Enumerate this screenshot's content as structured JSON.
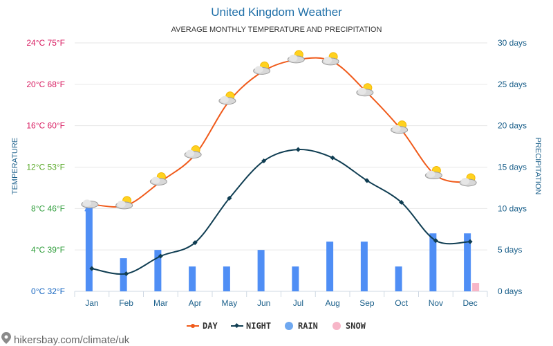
{
  "chart_data": {
    "type": "line",
    "title": "United Kingdom Weather",
    "subtitle": "AVERAGE MONTHLY TEMPERATURE AND PRECIPITATION",
    "categories": [
      "Jan",
      "Feb",
      "Mar",
      "Apr",
      "May",
      "Jun",
      "Jul",
      "Aug",
      "Sep",
      "Oct",
      "Nov",
      "Dec"
    ],
    "series": [
      {
        "name": "DAY",
        "type": "line",
        "axis": "temperature",
        "color": "#f05a1a",
        "values": [
          8.4,
          8.3,
          10.6,
          13.2,
          18.4,
          21.3,
          22.4,
          22.2,
          19.2,
          15.6,
          11.2,
          10.5
        ]
      },
      {
        "name": "NIGHT",
        "type": "line",
        "axis": "temperature",
        "color": "#0f3d52",
        "values": [
          2.2,
          1.7,
          3.4,
          4.7,
          9.0,
          12.6,
          13.7,
          12.9,
          10.7,
          8.6,
          4.9,
          4.8
        ]
      },
      {
        "name": "RAIN",
        "type": "bar",
        "axis": "precipitation",
        "color": "#4f8ef5",
        "values": [
          10.5,
          4,
          5,
          3,
          3,
          5,
          3,
          6,
          6,
          3,
          7,
          7
        ]
      },
      {
        "name": "SNOW",
        "type": "bar",
        "axis": "precipitation",
        "color": "#f7b6c8",
        "values": [
          0,
          0,
          0,
          0,
          0,
          0,
          0,
          0,
          0,
          0,
          0,
          1
        ]
      }
    ],
    "y_left": {
      "label": "TEMPERATURE",
      "range": [
        0,
        24
      ],
      "ticks": [
        {
          "value": 0,
          "label": "0°C 32°F",
          "color": "#1565c0"
        },
        {
          "value": 4,
          "label": "4°C 39°F",
          "color": "#2e9d3a"
        },
        {
          "value": 8,
          "label": "8°C 46°F",
          "color": "#2e9d3a"
        },
        {
          "value": 12,
          "label": "12°C 53°F",
          "color": "#5aa92a"
        },
        {
          "value": 16,
          "label": "16°C 60°F",
          "color": "#d81b60"
        },
        {
          "value": 20,
          "label": "20°C 68°F",
          "color": "#d81b60"
        },
        {
          "value": 24,
          "label": "24°C 75°F",
          "color": "#d81b60"
        }
      ]
    },
    "y_right": {
      "label": "PRECIPITATION",
      "range": [
        0,
        30
      ],
      "ticks": [
        {
          "value": 0,
          "label": "0 days"
        },
        {
          "value": 5,
          "label": "5 days"
        },
        {
          "value": 10,
          "label": "10 days"
        },
        {
          "value": 15,
          "label": "15 days"
        },
        {
          "value": 20,
          "label": "20 days"
        },
        {
          "value": 25,
          "label": "25 days"
        },
        {
          "value": 30,
          "label": "30 days"
        }
      ]
    },
    "weather_icons": [
      "cloud-rain",
      "sun-cloud",
      "sun-cloud",
      "sun-cloud",
      "sun-cloud",
      "sun-cloud",
      "sun-cloud",
      "sun-cloud",
      "sun-cloud",
      "sun-cloud",
      "sun-cloud",
      "sun-cloud"
    ],
    "legend": {
      "position": "bottom-center",
      "items": [
        {
          "label": "DAY",
          "color": "#f05a1a",
          "marker": "line-dot"
        },
        {
          "label": "NIGHT",
          "color": "#0f3d52",
          "marker": "line-diamond"
        },
        {
          "label": "RAIN",
          "color": "#6fa8f0",
          "marker": "circle"
        },
        {
          "label": "SNOW",
          "color": "#f7b6c8",
          "marker": "circle"
        }
      ]
    },
    "grid": true
  },
  "footer": {
    "site": "hikersbay.com/climate/uk",
    "icon": "location-pin-icon"
  }
}
